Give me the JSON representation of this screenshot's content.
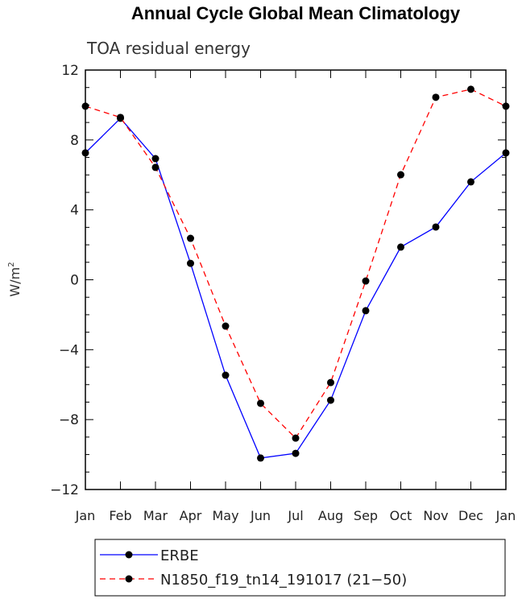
{
  "chart_data": {
    "type": "line",
    "title": "Annual Cycle Global Mean Climatology",
    "subtitle": "TOA residual energy",
    "xlabel": "",
    "ylabel": "W/m",
    "ylabel_sup": "2",
    "categories": [
      "Jan",
      "Feb",
      "Mar",
      "Apr",
      "May",
      "Jun",
      "Jul",
      "Aug",
      "Sep",
      "Oct",
      "Nov",
      "Dec",
      "Jan"
    ],
    "ylim": [
      -12,
      12
    ],
    "yticks": [
      12,
      8,
      4,
      0,
      -4,
      -8,
      -12
    ],
    "ytick_labels": [
      "12",
      "8",
      "4",
      "0",
      "−4",
      "−8",
      "−12"
    ],
    "grid": false,
    "legend_position": "bottom",
    "series": [
      {
        "name": "ERBE",
        "color": "#0000ff",
        "dash": "solid",
        "values": [
          7.26,
          9.24,
          6.93,
          0.94,
          -5.46,
          -10.2,
          -9.93,
          -6.89,
          -1.77,
          1.87,
          3.02,
          5.6,
          7.26
        ]
      },
      {
        "name": "N1850_f19_tn14_191017 (21−50)",
        "color": "#ff0000",
        "dash": "dashed",
        "values": [
          9.93,
          9.29,
          6.43,
          2.37,
          -2.65,
          -7.07,
          -9.06,
          -5.88,
          -0.07,
          6.01,
          10.44,
          10.9,
          9.93
        ]
      }
    ]
  }
}
